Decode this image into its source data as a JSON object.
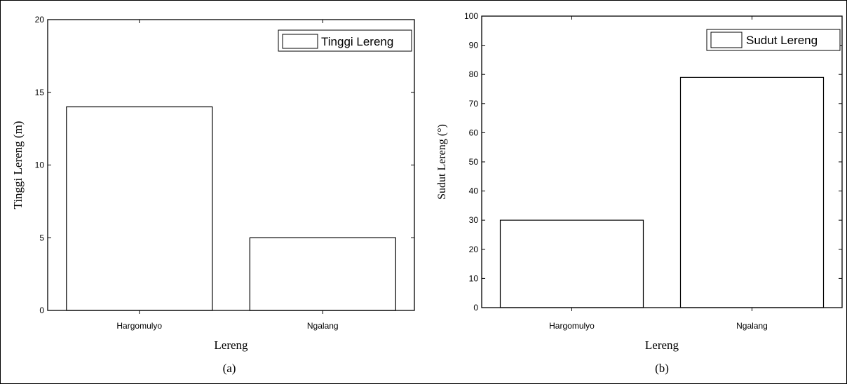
{
  "chart_data": [
    {
      "type": "bar",
      "categories": [
        "Hargomulyo",
        "Ngalang"
      ],
      "values": [
        14,
        5
      ],
      "xlabel": "Lereng",
      "ylabel": "Tinggi Lereng (m)",
      "ylim": [
        0,
        20
      ],
      "yticks": [
        0,
        5,
        10,
        15,
        20
      ],
      "legend": {
        "label": "Tinggi Lereng",
        "position": "top-right"
      },
      "caption": "(a)",
      "bar_fill": "#ffffff",
      "bar_stroke": "#000000"
    },
    {
      "type": "bar",
      "categories": [
        "Hargomulyo",
        "Ngalang"
      ],
      "values": [
        30,
        79
      ],
      "xlabel": "Lereng",
      "ylabel": "Sudut Lereng (°)",
      "ylim": [
        0,
        100
      ],
      "yticks": [
        0,
        10,
        20,
        30,
        40,
        50,
        60,
        70,
        80,
        90,
        100
      ],
      "legend": {
        "label": "Sudut Lereng",
        "position": "top-right"
      },
      "caption": "(b)",
      "bar_fill": "#ffffff",
      "bar_stroke": "#000000"
    }
  ]
}
